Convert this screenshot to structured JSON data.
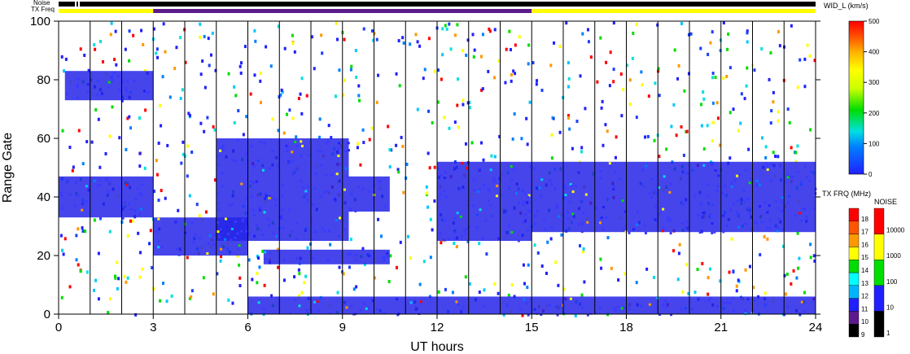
{
  "chart_data": {
    "type": "heatmap",
    "xlabel": "UT hours",
    "ylabel": "Range Gate",
    "x_range": [
      0,
      24
    ],
    "y_range": [
      0,
      100
    ],
    "x_ticks": [
      0,
      3,
      6,
      9,
      12,
      15,
      18,
      21,
      24
    ],
    "y_ticks": [
      0,
      20,
      40,
      60,
      80,
      100
    ],
    "grid": "vertical lines every hour",
    "parameter": "WID_L",
    "parameter_label": "WID_L (km/s)",
    "scale_range": [
      0,
      500
    ],
    "scale_ticks": [
      0,
      100,
      200,
      300,
      400,
      500
    ],
    "status_bars": {
      "noise_label": "Noise",
      "txfreq_label": "TX Freq",
      "txfreq_segments": [
        {
          "from": 0,
          "to": 3,
          "color": "#ffff00"
        },
        {
          "from": 3,
          "to": 15,
          "color": "#5c1a8c"
        },
        {
          "from": 15,
          "to": 24,
          "color": "#ffff00"
        }
      ]
    },
    "tx_freq_legend": {
      "title": "TX FRQ (MHz)",
      "levels": [
        "9",
        "10",
        "11",
        "12",
        "13",
        "14",
        "15",
        "16",
        "17",
        "18"
      ],
      "colors": [
        "#000000",
        "#5c1a8c",
        "#2020ff",
        "#00b4ff",
        "#00ffff",
        "#00dd00",
        "#ffff00",
        "#ff9900",
        "#ff5500",
        "#ff0000"
      ]
    },
    "noise_legend": {
      "title": "NOISE",
      "levels": [
        "1",
        "10",
        "100",
        "1000",
        "10000"
      ],
      "colors": [
        "#000000",
        "#2020ff",
        "#00dd00",
        "#ffff00",
        "#ff0000"
      ]
    },
    "echo_bands": [
      {
        "name": "main echo 00-03 UT",
        "t0": 0,
        "t1": 3,
        "g0": 33,
        "g1": 47
      },
      {
        "name": "upper echo 00-03 UT",
        "t0": 0.2,
        "t1": 3,
        "g0": 73,
        "g1": 83
      },
      {
        "name": "low echo 03-06 UT",
        "t0": 3,
        "t1": 6,
        "g0": 20,
        "g1": 33
      },
      {
        "name": "rising echo 05-09 UT",
        "t0": 5,
        "t1": 9.2,
        "g0": 25,
        "g1": 60
      },
      {
        "name": "patch 09-10.5 UT",
        "t0": 9.2,
        "t1": 10.5,
        "g0": 35,
        "g1": 47
      },
      {
        "name": "descending echo 12-15 UT",
        "t0": 12,
        "t1": 15,
        "g0": 25,
        "g1": 52
      },
      {
        "name": "main echo 15-24 UT",
        "t0": 15,
        "t1": 24,
        "g0": 28,
        "g1": 52
      },
      {
        "name": "band 07-10.5 UT",
        "t0": 6.5,
        "t1": 10.5,
        "g0": 17,
        "g1": 22
      },
      {
        "name": "near-range band",
        "t0": 6,
        "t1": 24,
        "g0": 0,
        "g1": 6
      }
    ]
  }
}
